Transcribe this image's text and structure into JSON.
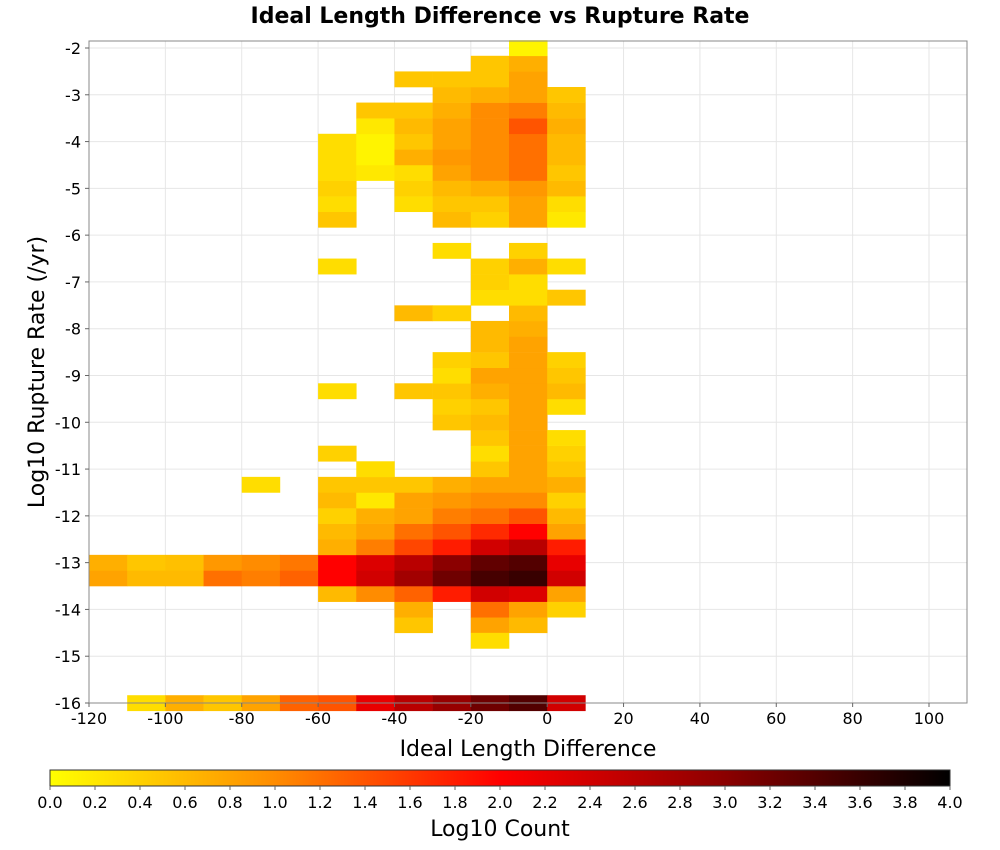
{
  "chart_data": {
    "type": "heatmap",
    "title": "Ideal Length Difference vs Rupture Rate",
    "xlabel": "Ideal Length Difference",
    "ylabel": "Log10 Rupture Rate (/yr)",
    "colorbar_label": "Log10 Count",
    "xlim": [
      -120,
      110
    ],
    "ylim": [
      -16,
      -1.9
    ],
    "x_ticks": [
      "-120",
      "-100",
      "-80",
      "-60",
      "-40",
      "-20",
      "0",
      "20",
      "40",
      "60",
      "80",
      "100"
    ],
    "y_ticks": [
      "-2",
      "-3",
      "-4",
      "-5",
      "-6",
      "-7",
      "-8",
      "-9",
      "-10",
      "-11",
      "-12",
      "-13",
      "-14",
      "-15",
      "-16"
    ],
    "colorbar_ticks": [
      "0.0",
      "0.2",
      "0.4",
      "0.6",
      "0.8",
      "1.0",
      "1.2",
      "1.4",
      "1.6",
      "1.8",
      "2.0",
      "2.2",
      "2.4",
      "2.6",
      "2.8",
      "3.0",
      "3.2",
      "3.4",
      "3.6",
      "3.8",
      "4.0"
    ],
    "color_range": [
      0,
      4
    ],
    "colormap": [
      "#ffff00",
      "#ff8c00",
      "#ff0000",
      "#8b0000",
      "#000000"
    ],
    "grid": true,
    "bin_size": {
      "x": 10,
      "y": 0.333
    },
    "cells": [
      [
        -120,
        -13.333,
        0.8
      ],
      [
        -120,
        -13.0,
        0.7
      ],
      [
        -110,
        -16.0,
        0.3
      ],
      [
        -110,
        -13.333,
        0.6
      ],
      [
        -110,
        -13.0,
        0.5
      ],
      [
        -100,
        -16.0,
        0.7
      ],
      [
        -100,
        -13.333,
        0.6
      ],
      [
        -100,
        -13.0,
        0.55
      ],
      [
        -90,
        -16.0,
        0.5
      ],
      [
        -90,
        -13.333,
        1.2
      ],
      [
        -90,
        -13.0,
        0.9
      ],
      [
        -80,
        -16.0,
        0.8
      ],
      [
        -80,
        -13.333,
        1.1
      ],
      [
        -80,
        -11.333,
        0.3
      ],
      [
        -80,
        -13.0,
        1.0
      ],
      [
        -70,
        -16.0,
        1.3
      ],
      [
        -70,
        -13.333,
        1.3
      ],
      [
        -70,
        -13.0,
        1.15
      ],
      [
        -60,
        -16.0,
        1.4
      ],
      [
        -60,
        -13.667,
        0.6
      ],
      [
        -60,
        -13.333,
        2.0
      ],
      [
        -60,
        -13.0,
        2.0
      ],
      [
        -60,
        -12.667,
        0.7
      ],
      [
        -60,
        -12.333,
        0.6
      ],
      [
        -60,
        -12.0,
        0.4
      ],
      [
        -60,
        -11.667,
        0.6
      ],
      [
        -60,
        -11.333,
        0.5
      ],
      [
        -60,
        -10.667,
        0.4
      ],
      [
        -60,
        -9.333,
        0.3
      ],
      [
        -60,
        -6.667,
        0.3
      ],
      [
        -60,
        -5.667,
        0.5
      ],
      [
        -60,
        -5.333,
        0.3
      ],
      [
        -60,
        -5.0,
        0.4
      ],
      [
        -60,
        -4.667,
        0.3
      ],
      [
        -60,
        -4.333,
        0.3
      ],
      [
        -60,
        -4.0,
        0.3
      ],
      [
        -50,
        -16.0,
        2.2
      ],
      [
        -50,
        -13.667,
        1.0
      ],
      [
        -50,
        -13.333,
        2.4
      ],
      [
        -50,
        -13.0,
        2.3
      ],
      [
        -50,
        -12.667,
        1.1
      ],
      [
        -50,
        -12.333,
        0.8
      ],
      [
        -50,
        -12.0,
        0.7
      ],
      [
        -50,
        -11.667,
        0.2
      ],
      [
        -50,
        -11.333,
        0.5
      ],
      [
        -50,
        -11.0,
        0.3
      ],
      [
        -50,
        -4.667,
        0.2
      ],
      [
        -50,
        -4.333,
        0.1
      ],
      [
        -50,
        -4.0,
        0.1
      ],
      [
        -50,
        -3.667,
        0.2
      ],
      [
        -50,
        -3.333,
        0.5
      ],
      [
        -40,
        -16.0,
        2.6
      ],
      [
        -40,
        -14.333,
        0.5
      ],
      [
        -40,
        -14.0,
        0.7
      ],
      [
        -40,
        -13.667,
        1.3
      ],
      [
        -40,
        -13.333,
        2.8
      ],
      [
        -40,
        -13.0,
        2.6
      ],
      [
        -40,
        -12.667,
        1.5
      ],
      [
        -40,
        -12.333,
        1.2
      ],
      [
        -40,
        -12.0,
        0.8
      ],
      [
        -40,
        -11.667,
        0.8
      ],
      [
        -40,
        -11.333,
        0.5
      ],
      [
        -40,
        -9.333,
        0.5
      ],
      [
        -40,
        -7.667,
        0.6
      ],
      [
        -40,
        -5.333,
        0.3
      ],
      [
        -40,
        -5.0,
        0.4
      ],
      [
        -40,
        -4.667,
        0.3
      ],
      [
        -40,
        -4.333,
        0.7
      ],
      [
        -40,
        -4.0,
        0.5
      ],
      [
        -40,
        -3.667,
        0.6
      ],
      [
        -40,
        -3.333,
        0.5
      ],
      [
        -40,
        -2.667,
        0.5
      ],
      [
        -30,
        -16.0,
        2.9
      ],
      [
        -30,
        -13.667,
        1.8
      ],
      [
        -30,
        -13.333,
        3.2
      ],
      [
        -30,
        -13.0,
        3.0
      ],
      [
        -30,
        -12.667,
        1.8
      ],
      [
        -30,
        -12.333,
        1.4
      ],
      [
        -30,
        -12.0,
        1.1
      ],
      [
        -30,
        -11.667,
        0.9
      ],
      [
        -30,
        -11.333,
        0.7
      ],
      [
        -30,
        -10.0,
        0.5
      ],
      [
        -30,
        -9.667,
        0.4
      ],
      [
        -30,
        -9.333,
        0.5
      ],
      [
        -30,
        -9.0,
        0.3
      ],
      [
        -30,
        -8.667,
        0.4
      ],
      [
        -30,
        -7.667,
        0.4
      ],
      [
        -30,
        -6.333,
        0.3
      ],
      [
        -30,
        -5.667,
        0.6
      ],
      [
        -30,
        -5.333,
        0.5
      ],
      [
        -30,
        -5.0,
        0.6
      ],
      [
        -30,
        -4.667,
        0.8
      ],
      [
        -30,
        -4.333,
        0.9
      ],
      [
        -30,
        -4.0,
        0.8
      ],
      [
        -30,
        -3.667,
        0.8
      ],
      [
        -30,
        -3.333,
        0.7
      ],
      [
        -30,
        -3.0,
        0.6
      ],
      [
        -30,
        -2.667,
        0.5
      ],
      [
        -20,
        -16.0,
        3.2
      ],
      [
        -20,
        -14.333,
        0.8
      ],
      [
        -20,
        -14.0,
        1.2
      ],
      [
        -20,
        -13.667,
        2.4
      ],
      [
        -20,
        -13.333,
        3.5
      ],
      [
        -20,
        -13.0,
        3.3
      ],
      [
        -20,
        -12.667,
        2.4
      ],
      [
        -20,
        -12.333,
        1.7
      ],
      [
        -20,
        -12.0,
        1.2
      ],
      [
        -20,
        -11.667,
        1.0
      ],
      [
        -20,
        -11.333,
        0.8
      ],
      [
        -20,
        -11.0,
        0.5
      ],
      [
        -20,
        -10.667,
        0.3
      ],
      [
        -20,
        -10.333,
        0.5
      ],
      [
        -20,
        -10.0,
        0.6
      ],
      [
        -20,
        -9.667,
        0.5
      ],
      [
        -20,
        -9.333,
        0.7
      ],
      [
        -20,
        -9.0,
        0.8
      ],
      [
        -20,
        -8.667,
        0.5
      ],
      [
        -20,
        -8.333,
        0.6
      ],
      [
        -20,
        -8.0,
        0.6
      ],
      [
        -20,
        -7.333,
        0.3
      ],
      [
        -20,
        -7.0,
        0.4
      ],
      [
        -20,
        -6.667,
        0.4
      ],
      [
        -20,
        -14.667,
        0.3
      ],
      [
        -20,
        -5.667,
        0.4
      ],
      [
        -20,
        -5.333,
        0.5
      ],
      [
        -20,
        -5.0,
        0.7
      ],
      [
        -20,
        -4.667,
        1.0
      ],
      [
        -20,
        -4.333,
        1.0
      ],
      [
        -20,
        -4.0,
        1.0
      ],
      [
        -20,
        -3.667,
        1.0
      ],
      [
        -20,
        -3.333,
        1.0
      ],
      [
        -20,
        -3.0,
        0.7
      ],
      [
        -20,
        -2.667,
        0.5
      ],
      [
        -20,
        -2.333,
        0.5
      ],
      [
        -10,
        -16.0,
        3.4
      ],
      [
        -10,
        -14.333,
        0.6
      ],
      [
        -10,
        -14.0,
        0.8
      ],
      [
        -10,
        -13.667,
        2.3
      ],
      [
        -10,
        -13.333,
        3.6
      ],
      [
        -10,
        -13.0,
        3.4
      ],
      [
        -10,
        -12.667,
        2.6
      ],
      [
        -10,
        -12.333,
        2.0
      ],
      [
        -10,
        -12.0,
        1.4
      ],
      [
        -10,
        -11.667,
        1.0
      ],
      [
        -10,
        -11.333,
        0.8
      ],
      [
        -10,
        -11.0,
        0.8
      ],
      [
        -10,
        -10.667,
        0.8
      ],
      [
        -10,
        -10.333,
        0.8
      ],
      [
        -10,
        -10.0,
        0.8
      ],
      [
        -10,
        -9.667,
        0.8
      ],
      [
        -10,
        -9.333,
        0.8
      ],
      [
        -10,
        -9.0,
        0.8
      ],
      [
        -10,
        -8.667,
        0.8
      ],
      [
        -10,
        -8.333,
        0.8
      ],
      [
        -10,
        -8.0,
        0.7
      ],
      [
        -10,
        -7.667,
        0.6
      ],
      [
        -10,
        -7.333,
        0.3
      ],
      [
        -10,
        -7.0,
        0.3
      ],
      [
        -10,
        -6.667,
        0.7
      ],
      [
        -10,
        -6.333,
        0.4
      ],
      [
        -10,
        -5.667,
        0.8
      ],
      [
        -10,
        -5.333,
        0.8
      ],
      [
        -10,
        -5.0,
        0.9
      ],
      [
        -10,
        -4.667,
        1.2
      ],
      [
        -10,
        -4.333,
        1.2
      ],
      [
        -10,
        -4.0,
        1.2
      ],
      [
        -10,
        -3.667,
        1.4
      ],
      [
        -10,
        -3.333,
        1.1
      ],
      [
        -10,
        -3.0,
        0.8
      ],
      [
        -10,
        -2.667,
        0.8
      ],
      [
        -10,
        -2.333,
        0.7
      ],
      [
        -10,
        -2.0,
        0.1
      ],
      [
        0,
        -16.0,
        2.4
      ],
      [
        0,
        -14.0,
        0.4
      ],
      [
        0,
        -13.667,
        0.8
      ],
      [
        0,
        -13.333,
        2.4
      ],
      [
        0,
        -13.0,
        2.2
      ],
      [
        0,
        -12.667,
        1.8
      ],
      [
        0,
        -12.333,
        0.8
      ],
      [
        0,
        -12.0,
        0.6
      ],
      [
        0,
        -11.667,
        0.4
      ],
      [
        0,
        -11.333,
        0.7
      ],
      [
        0,
        -11.0,
        0.5
      ],
      [
        0,
        -10.667,
        0.4
      ],
      [
        0,
        -10.333,
        0.3
      ],
      [
        0,
        -9.667,
        0.3
      ],
      [
        0,
        -9.333,
        0.6
      ],
      [
        0,
        -9.0,
        0.5
      ],
      [
        0,
        -8.667,
        0.4
      ],
      [
        0,
        -7.333,
        0.5
      ],
      [
        0,
        -6.667,
        0.3
      ],
      [
        0,
        -5.667,
        0.2
      ],
      [
        0,
        -5.333,
        0.3
      ],
      [
        0,
        -5.0,
        0.6
      ],
      [
        0,
        -4.667,
        0.5
      ],
      [
        0,
        -4.333,
        0.6
      ],
      [
        0,
        -4.0,
        0.6
      ],
      [
        0,
        -3.667,
        0.7
      ],
      [
        0,
        -3.333,
        0.6
      ],
      [
        0,
        -3.0,
        0.5
      ]
    ]
  }
}
